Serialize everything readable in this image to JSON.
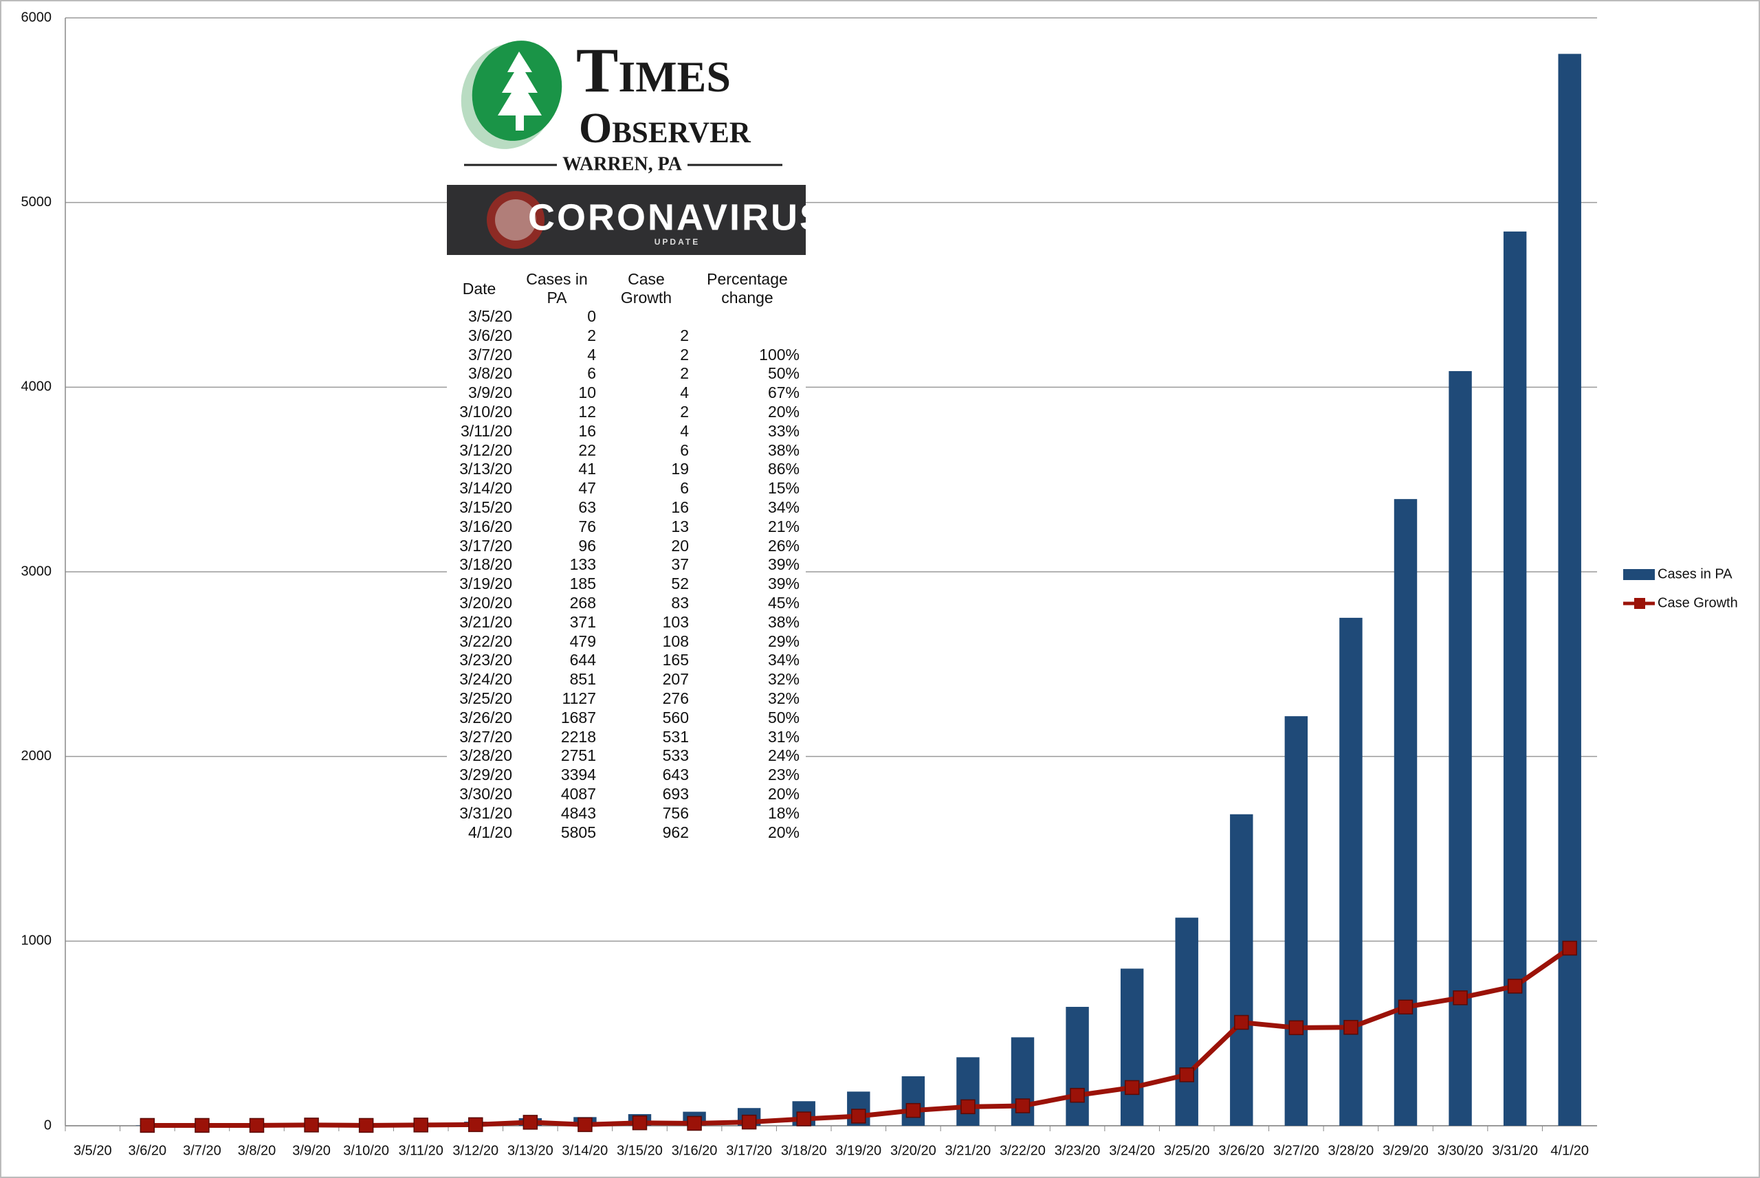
{
  "chart_data": {
    "type": "bar",
    "categories": [
      "3/5/20",
      "3/6/20",
      "3/7/20",
      "3/8/20",
      "3/9/20",
      "3/10/20",
      "3/11/20",
      "3/12/20",
      "3/13/20",
      "3/14/20",
      "3/15/20",
      "3/16/20",
      "3/17/20",
      "3/18/20",
      "3/19/20",
      "3/20/20",
      "3/21/20",
      "3/22/20",
      "3/23/20",
      "3/24/20",
      "3/25/20",
      "3/26/20",
      "3/27/20",
      "3/28/20",
      "3/29/20",
      "3/30/20",
      "3/31/20",
      "4/1/20"
    ],
    "series": [
      {
        "name": "Cases in PA",
        "type": "bar",
        "color": "#1f4a78",
        "values": [
          0,
          2,
          4,
          6,
          10,
          12,
          16,
          22,
          41,
          47,
          63,
          76,
          96,
          133,
          185,
          268,
          371,
          479,
          644,
          851,
          1127,
          1687,
          2218,
          2751,
          3394,
          4087,
          4843,
          5805
        ]
      },
      {
        "name": "Case Growth",
        "type": "line",
        "color": "#9b1208",
        "values": [
          null,
          2,
          2,
          2,
          4,
          2,
          4,
          6,
          19,
          6,
          16,
          13,
          20,
          37,
          52,
          83,
          103,
          108,
          165,
          207,
          276,
          560,
          531,
          533,
          643,
          693,
          756,
          962
        ]
      }
    ],
    "ylim": [
      0,
      6000
    ],
    "yticks": [
      0,
      1000,
      2000,
      3000,
      4000,
      5000,
      6000
    ],
    "grid": true,
    "legend": "right"
  },
  "logo": {
    "name_top": "Times",
    "name_bottom": "Observer",
    "place": "WARREN, PA",
    "banner": "CORONAVIRUS",
    "banner_sub": "UPDATE"
  },
  "table": {
    "header": [
      "Date",
      "Cases in PA",
      "Case Growth",
      "Percentage change"
    ],
    "rows": [
      [
        "3/5/20",
        "0",
        null,
        null
      ],
      [
        "3/6/20",
        "2",
        "2",
        null
      ],
      [
        "3/7/20",
        "4",
        "2",
        "100%"
      ],
      [
        "3/8/20",
        "6",
        "2",
        "50%"
      ],
      [
        "3/9/20",
        "10",
        "4",
        "67%"
      ],
      [
        "3/10/20",
        "12",
        "2",
        "20%"
      ],
      [
        "3/11/20",
        "16",
        "4",
        "33%"
      ],
      [
        "3/12/20",
        "22",
        "6",
        "38%"
      ],
      [
        "3/13/20",
        "41",
        "19",
        "86%"
      ],
      [
        "3/14/20",
        "47",
        "6",
        "15%"
      ],
      [
        "3/15/20",
        "63",
        "16",
        "34%"
      ],
      [
        "3/16/20",
        "76",
        "13",
        "21%"
      ],
      [
        "3/17/20",
        "96",
        "20",
        "26%"
      ],
      [
        "3/18/20",
        "133",
        "37",
        "39%"
      ],
      [
        "3/19/20",
        "185",
        "52",
        "39%"
      ],
      [
        "3/20/20",
        "268",
        "83",
        "45%"
      ],
      [
        "3/21/20",
        "371",
        "103",
        "38%"
      ],
      [
        "3/22/20",
        "479",
        "108",
        "29%"
      ],
      [
        "3/23/20",
        "644",
        "165",
        "34%"
      ],
      [
        "3/24/20",
        "851",
        "207",
        "32%"
      ],
      [
        "3/25/20",
        "1127",
        "276",
        "32%"
      ],
      [
        "3/26/20",
        "1687",
        "560",
        "50%"
      ],
      [
        "3/27/20",
        "2218",
        "531",
        "31%"
      ],
      [
        "3/28/20",
        "2751",
        "533",
        "24%"
      ],
      [
        "3/29/20",
        "3394",
        "643",
        "23%"
      ],
      [
        "3/30/20",
        "4087",
        "693",
        "20%"
      ],
      [
        "3/31/20",
        "4843",
        "756",
        "18%"
      ],
      [
        "4/1/20",
        "5805",
        "962",
        "20%"
      ]
    ]
  }
}
